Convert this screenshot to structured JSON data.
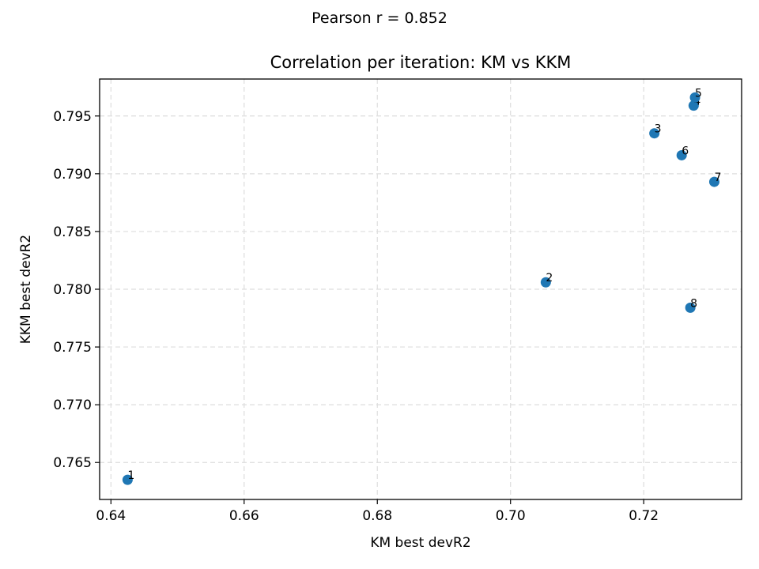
{
  "suptitle": "Pearson r = 0.852",
  "chart_data": {
    "type": "scatter",
    "title": "Correlation per iteration: KM vs KKM",
    "xlabel": "KM best devR2",
    "ylabel": "KKM best devR2",
    "xlim": [
      0.6383,
      0.7347
    ],
    "ylim": [
      0.7618,
      0.7982
    ],
    "xticks": [
      "0.64",
      "0.66",
      "0.68",
      "0.70",
      "0.72"
    ],
    "yticks": [
      "0.765",
      "0.770",
      "0.775",
      "0.780",
      "0.785",
      "0.790",
      "0.795"
    ],
    "grid": true,
    "marker_color": "#1f77b4",
    "points": [
      {
        "label": "1",
        "x": 0.6425,
        "y": 0.7635
      },
      {
        "label": "2",
        "x": 0.7053,
        "y": 0.7806
      },
      {
        "label": "3",
        "x": 0.7216,
        "y": 0.7935
      },
      {
        "label": "4",
        "x": 0.7275,
        "y": 0.7959
      },
      {
        "label": "5",
        "x": 0.7277,
        "y": 0.7966
      },
      {
        "label": "6",
        "x": 0.7257,
        "y": 0.7916
      },
      {
        "label": "7",
        "x": 0.7306,
        "y": 0.7893
      },
      {
        "label": "8",
        "x": 0.727,
        "y": 0.7784
      }
    ]
  }
}
